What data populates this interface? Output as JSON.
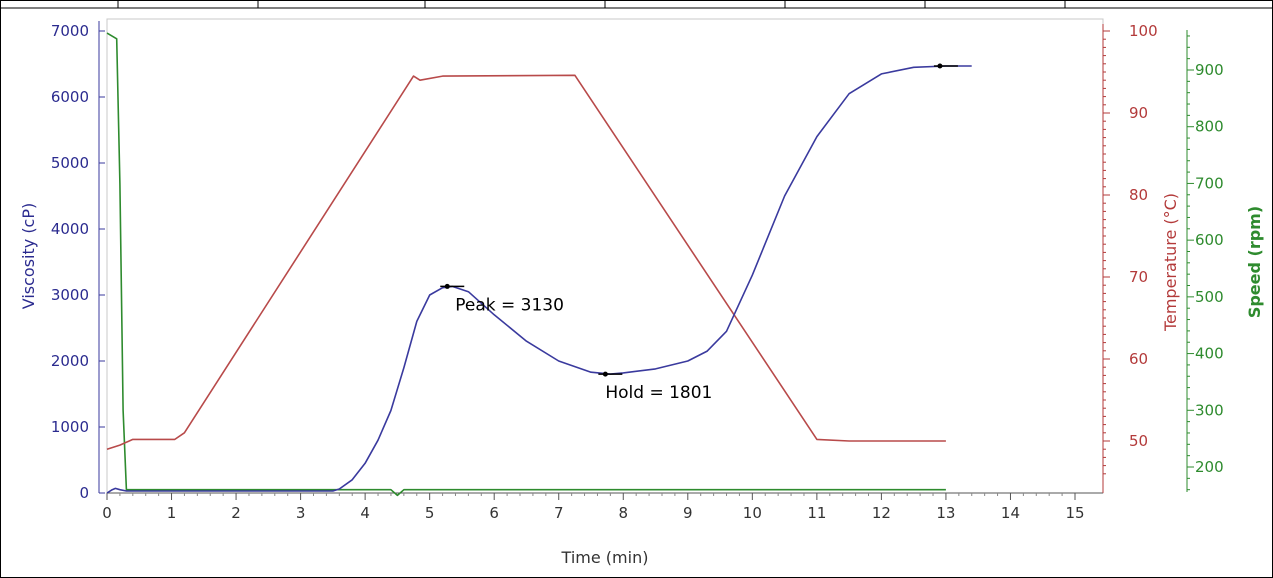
{
  "chart_data": {
    "type": "line",
    "xlabel": "Time (min)",
    "xlim": [
      0,
      15
    ],
    "xticks": [
      0,
      1,
      2,
      3,
      4,
      5,
      6,
      7,
      8,
      9,
      10,
      11,
      12,
      13,
      14,
      15
    ],
    "y_axes": {
      "viscosity": {
        "label": "Viscosity (cP)",
        "range": [
          0,
          7000
        ],
        "ticks": [
          0,
          1000,
          2000,
          3000,
          4000,
          5000,
          6000,
          7000
        ],
        "position": "left",
        "color": "#2b2b8f"
      },
      "temperature": {
        "label": "Temperature (°C)",
        "range": [
          45,
          100
        ],
        "ticks": [
          50,
          60,
          70,
          80,
          90,
          100
        ],
        "position": "right",
        "color": "#b33a3a"
      },
      "speed": {
        "label": "Speed (rpm)",
        "range": [
          150,
          960
        ],
        "ticks": [
          200,
          300,
          400,
          500,
          600,
          700,
          800,
          900
        ],
        "position": "far-right",
        "color": "#2e8b2e"
      }
    },
    "grid": false,
    "series": [
      {
        "axis": "viscosity",
        "color": "#3a3a9e",
        "x": [
          0.0,
          0.08,
          0.13,
          0.2,
          0.3,
          1.0,
          2.0,
          3.0,
          3.5,
          3.6,
          3.8,
          4.0,
          4.2,
          4.4,
          4.6,
          4.8,
          5.0,
          5.2,
          5.35,
          5.6,
          6.0,
          6.5,
          7.0,
          7.5,
          7.8,
          8.0,
          8.5,
          9.0,
          9.3,
          9.6,
          10.0,
          10.5,
          11.0,
          11.5,
          12.0,
          12.5,
          13.0,
          13.4
        ],
        "values": [
          0,
          50,
          70,
          50,
          30,
          30,
          30,
          30,
          30,
          60,
          200,
          450,
          800,
          1250,
          1900,
          2600,
          3000,
          3110,
          3130,
          3050,
          2700,
          2300,
          2000,
          1830,
          1801,
          1820,
          1880,
          2000,
          2150,
          2450,
          3300,
          4500,
          5400,
          6050,
          6350,
          6450,
          6470,
          6470
        ]
      },
      {
        "axis": "temperature",
        "color": "#b84a4a",
        "x": [
          0.0,
          0.2,
          0.4,
          1.05,
          1.2,
          4.75,
          4.85,
          5.2,
          7.25,
          11.0,
          11.5,
          12.0,
          12.5,
          13.0
        ],
        "values": [
          49.0,
          49.5,
          50.2,
          50.2,
          51.0,
          94.5,
          94.0,
          94.5,
          94.6,
          50.2,
          50.0,
          50.0,
          50.0,
          50.0
        ]
      },
      {
        "axis": "speed",
        "color": "#2e8b2e",
        "x": [
          0.0,
          0.15,
          0.2,
          0.25,
          0.3,
          4.4,
          4.5,
          4.6,
          13.0
        ],
        "values": [
          965,
          955,
          700,
          300,
          160,
          160,
          150,
          160,
          160
        ]
      }
    ],
    "annotations": [
      {
        "text": "Peak = 3130",
        "x": 5.35,
        "value": 3130,
        "axis": "viscosity"
      },
      {
        "text": "Hold = 1801",
        "x": 7.8,
        "value": 1801,
        "axis": "viscosity"
      }
    ]
  }
}
